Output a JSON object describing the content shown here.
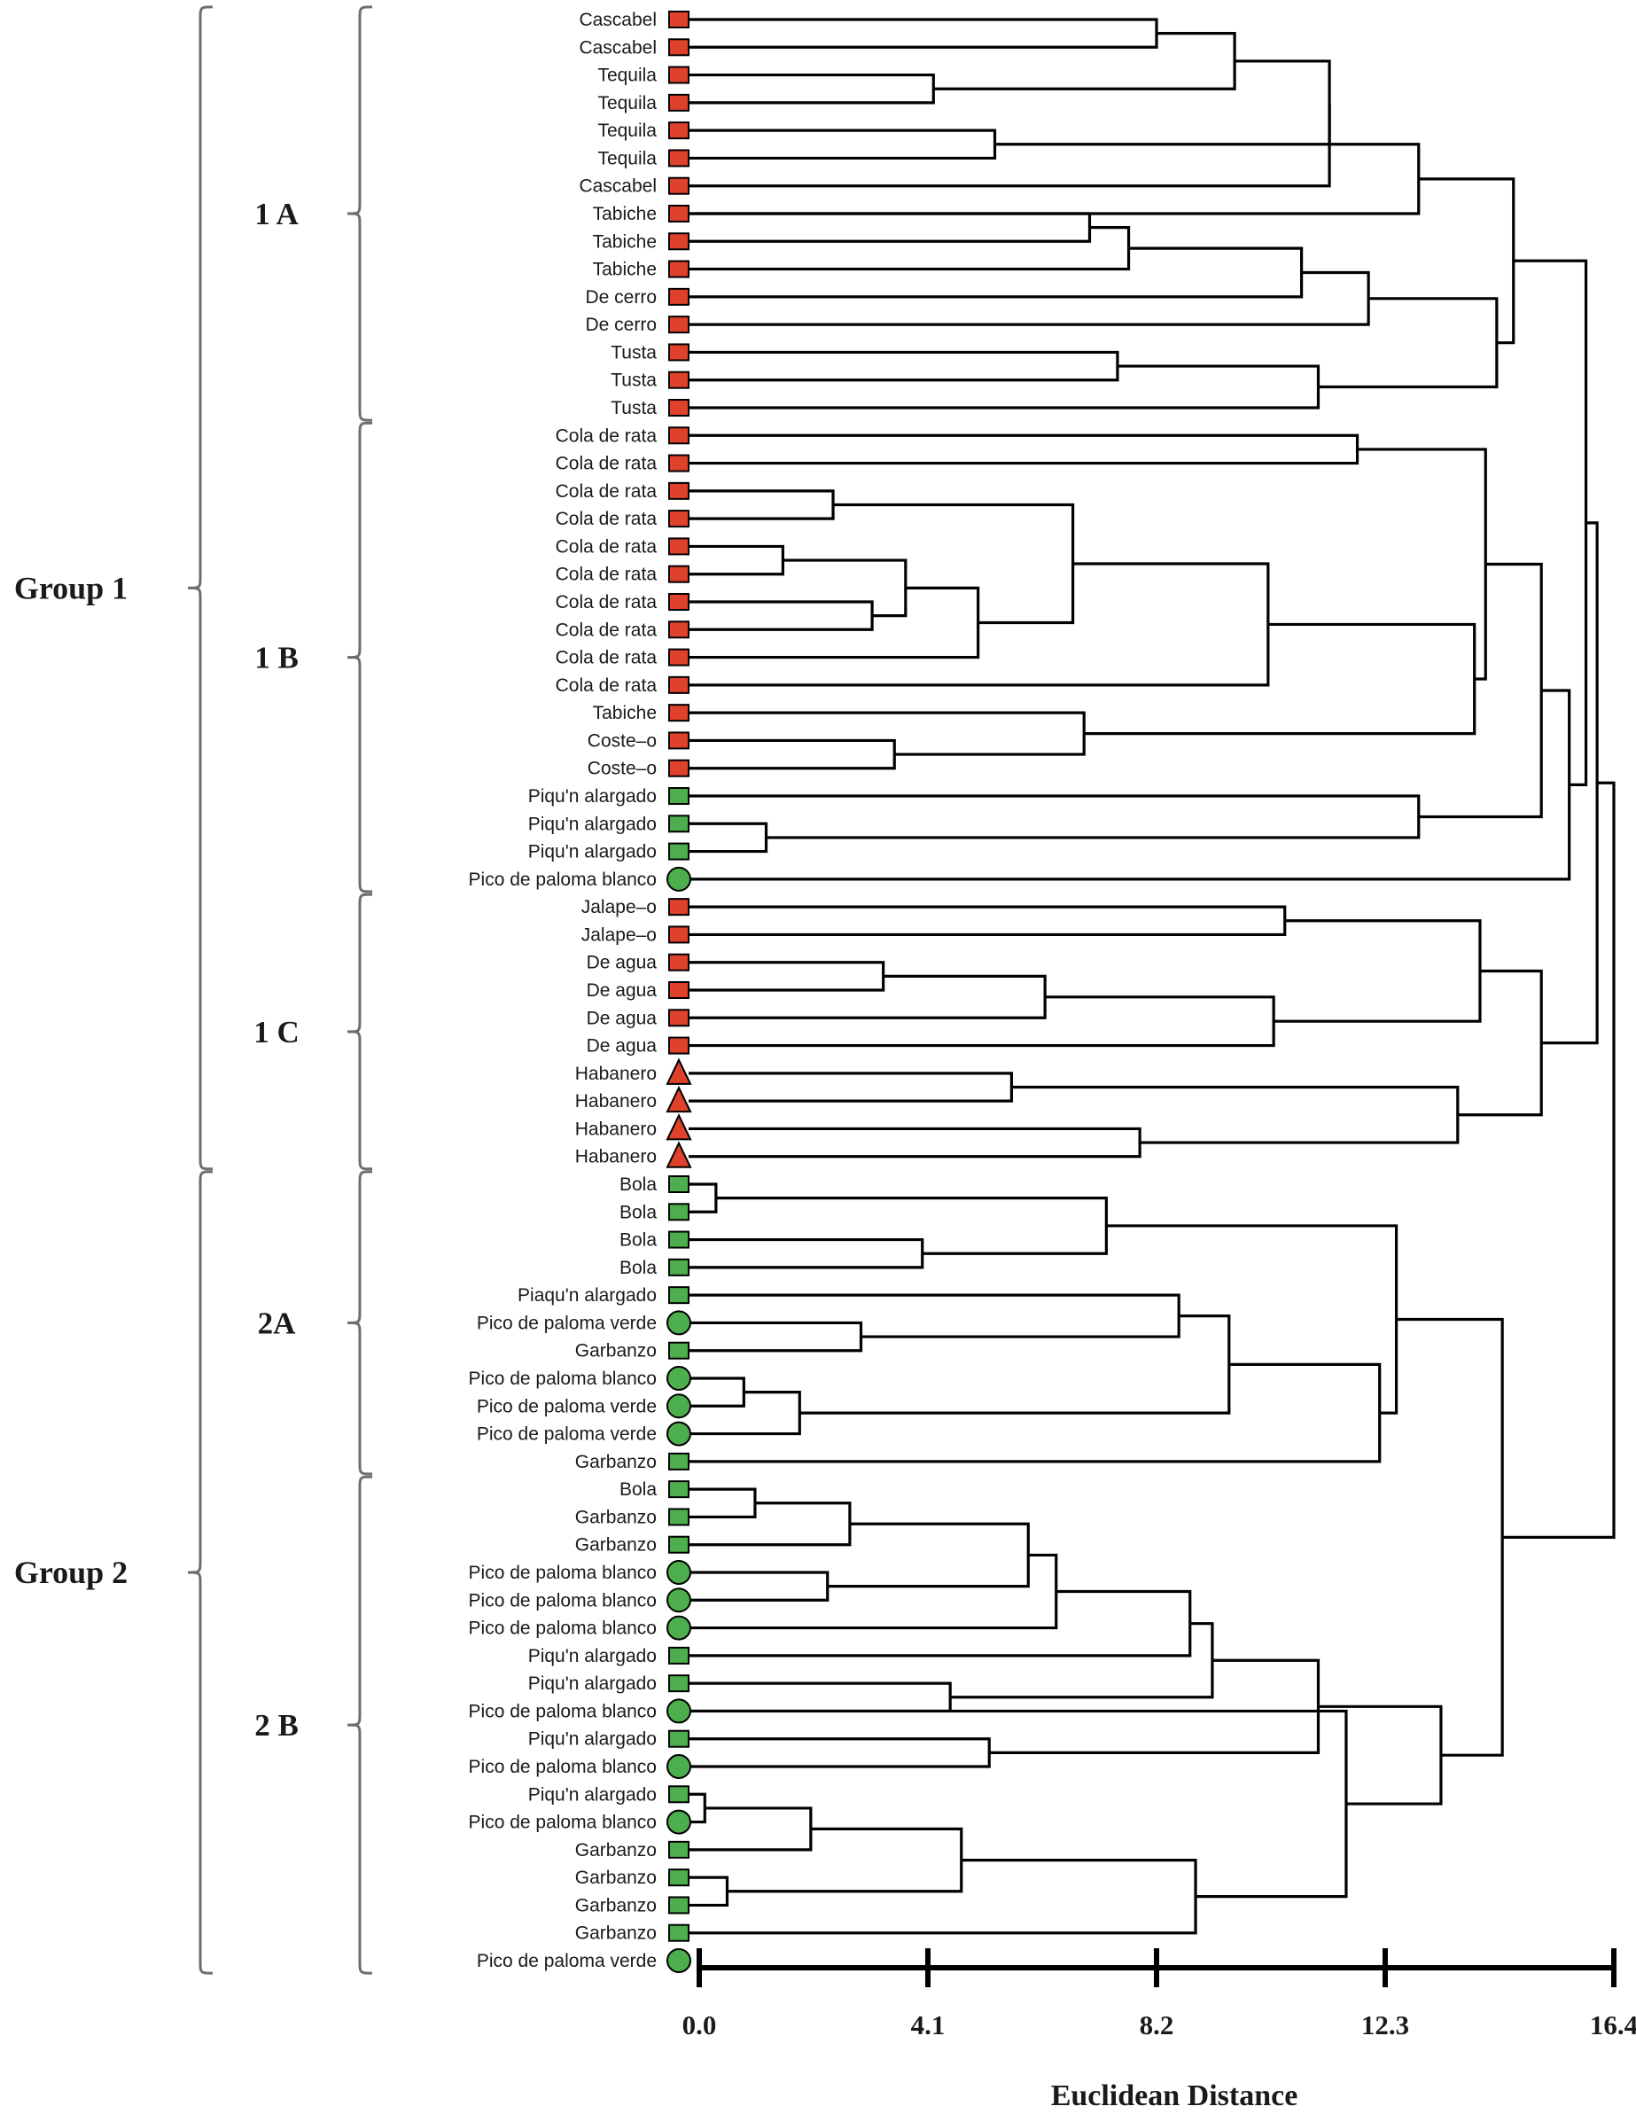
{
  "chart_data": {
    "type": "dendrogram",
    "xlabel": "Euclidean Distance",
    "xlim": [
      0,
      16.4
    ],
    "ticks": [
      {
        "value": 0.0,
        "label": "0.0"
      },
      {
        "value": 4.1,
        "label": "4.1"
      },
      {
        "value": 8.2,
        "label": "8.2"
      },
      {
        "value": 12.3,
        "label": "12.3"
      },
      {
        "value": 16.4,
        "label": "16.4"
      }
    ],
    "colors": {
      "red": "#e0412b",
      "green": "#4cae4c"
    },
    "leaves": [
      {
        "label": "Cascabel",
        "shape": "square",
        "color": "red"
      },
      {
        "label": "Cascabel",
        "shape": "square",
        "color": "red"
      },
      {
        "label": "Tequila",
        "shape": "square",
        "color": "red"
      },
      {
        "label": "Tequila",
        "shape": "square",
        "color": "red"
      },
      {
        "label": "Tequila",
        "shape": "square",
        "color": "red"
      },
      {
        "label": "Tequila",
        "shape": "square",
        "color": "red"
      },
      {
        "label": "Cascabel",
        "shape": "square",
        "color": "red"
      },
      {
        "label": "Tabiche",
        "shape": "square",
        "color": "red"
      },
      {
        "label": "Tabiche",
        "shape": "square",
        "color": "red"
      },
      {
        "label": "Tabiche",
        "shape": "square",
        "color": "red"
      },
      {
        "label": "De cerro",
        "shape": "square",
        "color": "red"
      },
      {
        "label": "De cerro",
        "shape": "square",
        "color": "red"
      },
      {
        "label": "Tusta",
        "shape": "square",
        "color": "red"
      },
      {
        "label": "Tusta",
        "shape": "square",
        "color": "red"
      },
      {
        "label": "Tusta",
        "shape": "square",
        "color": "red"
      },
      {
        "label": "Cola de rata",
        "shape": "square",
        "color": "red"
      },
      {
        "label": "Cola de rata",
        "shape": "square",
        "color": "red"
      },
      {
        "label": "Cola de rata",
        "shape": "square",
        "color": "red"
      },
      {
        "label": "Cola de rata",
        "shape": "square",
        "color": "red"
      },
      {
        "label": "Cola de rata",
        "shape": "square",
        "color": "red"
      },
      {
        "label": "Cola de rata",
        "shape": "square",
        "color": "red"
      },
      {
        "label": "Cola de rata",
        "shape": "square",
        "color": "red"
      },
      {
        "label": "Cola de rata",
        "shape": "square",
        "color": "red"
      },
      {
        "label": "Cola de rata",
        "shape": "square",
        "color": "red"
      },
      {
        "label": "Cola de rata",
        "shape": "square",
        "color": "red"
      },
      {
        "label": "Tabiche",
        "shape": "square",
        "color": "red"
      },
      {
        "label": "Coste–o",
        "shape": "square",
        "color": "red"
      },
      {
        "label": "Coste–o",
        "shape": "square",
        "color": "red"
      },
      {
        "label": "Piqu'n alargado",
        "shape": "square",
        "color": "green"
      },
      {
        "label": "Piqu'n alargado",
        "shape": "square",
        "color": "green"
      },
      {
        "label": "Piqu'n alargado",
        "shape": "square",
        "color": "green"
      },
      {
        "label": "Pico de paloma blanco",
        "shape": "circle",
        "color": "green"
      },
      {
        "label": "Jalape–o",
        "shape": "square",
        "color": "red"
      },
      {
        "label": "Jalape–o",
        "shape": "square",
        "color": "red"
      },
      {
        "label": "De agua",
        "shape": "square",
        "color": "red"
      },
      {
        "label": "De agua",
        "shape": "square",
        "color": "red"
      },
      {
        "label": "De agua",
        "shape": "square",
        "color": "red"
      },
      {
        "label": "De agua",
        "shape": "square",
        "color": "red"
      },
      {
        "label": "Habanero",
        "shape": "triangle",
        "color": "red"
      },
      {
        "label": "Habanero",
        "shape": "triangle",
        "color": "red"
      },
      {
        "label": "Habanero",
        "shape": "triangle",
        "color": "red"
      },
      {
        "label": "Habanero",
        "shape": "triangle",
        "color": "red"
      },
      {
        "label": "Bola",
        "shape": "square",
        "color": "green"
      },
      {
        "label": "Bola",
        "shape": "square",
        "color": "green"
      },
      {
        "label": "Bola",
        "shape": "square",
        "color": "green"
      },
      {
        "label": "Bola",
        "shape": "square",
        "color": "green"
      },
      {
        "label": "Piaqu'n alargado",
        "shape": "square",
        "color": "green"
      },
      {
        "label": "Pico de paloma verde",
        "shape": "circle",
        "color": "green"
      },
      {
        "label": "Garbanzo",
        "shape": "square",
        "color": "green"
      },
      {
        "label": "Pico de paloma blanco",
        "shape": "circle",
        "color": "green"
      },
      {
        "label": "Pico de paloma verde",
        "shape": "circle",
        "color": "green"
      },
      {
        "label": "Pico de paloma verde",
        "shape": "circle",
        "color": "green"
      },
      {
        "label": "Garbanzo",
        "shape": "square",
        "color": "green"
      },
      {
        "label": "Bola",
        "shape": "square",
        "color": "green"
      },
      {
        "label": "Garbanzo",
        "shape": "square",
        "color": "green"
      },
      {
        "label": "Garbanzo",
        "shape": "square",
        "color": "green"
      },
      {
        "label": "Pico de paloma blanco",
        "shape": "circle",
        "color": "green"
      },
      {
        "label": "Pico de paloma blanco",
        "shape": "circle",
        "color": "green"
      },
      {
        "label": "Pico de paloma blanco",
        "shape": "circle",
        "color": "green"
      },
      {
        "label": "Piqu'n alargado",
        "shape": "square",
        "color": "green"
      },
      {
        "label": "Piqu'n alargado",
        "shape": "square",
        "color": "green"
      },
      {
        "label": "Pico de paloma blanco",
        "shape": "circle",
        "color": "green"
      },
      {
        "label": "Piqu'n alargado",
        "shape": "square",
        "color": "green"
      },
      {
        "label": "Pico de paloma blanco",
        "shape": "circle",
        "color": "green"
      },
      {
        "label": "Piqu'n alargado",
        "shape": "square",
        "color": "green"
      },
      {
        "label": "Pico de paloma blanco",
        "shape": "circle",
        "color": "green"
      },
      {
        "label": "Garbanzo",
        "shape": "square",
        "color": "green"
      },
      {
        "label": "Garbanzo",
        "shape": "square",
        "color": "green"
      },
      {
        "label": "Garbanzo",
        "shape": "square",
        "color": "green"
      },
      {
        "label": "Garbanzo",
        "shape": "square",
        "color": "green"
      },
      {
        "label": "Pico de paloma verde",
        "shape": "circle",
        "color": "green"
      }
    ],
    "merges": [
      {
        "a": "L2",
        "b": "L3",
        "d": 4.2
      },
      {
        "a": "L4",
        "b": "L5",
        "d": 5.3
      },
      {
        "a": "L0",
        "b": "L1",
        "d": 8.2
      },
      {
        "a": "N2",
        "b": "N0",
        "d": 9.6
      },
      {
        "a": "N3",
        "b": "N1",
        "d": 11.3
      },
      {
        "a": "N4",
        "b": "L6",
        "d": 11.3
      },
      {
        "a": "N5",
        "b": "L7",
        "d": 12.9
      },
      {
        "a": "L7",
        "b": "L8",
        "d": 7.0
      },
      {
        "a": "N7",
        "b": "L9",
        "d": 7.7
      },
      {
        "a": "N8",
        "b": "L10",
        "d": 10.8
      },
      {
        "a": "N9",
        "b": "L11",
        "d": 12.0
      },
      {
        "a": "L12",
        "b": "L13",
        "d": 7.5
      },
      {
        "a": "N11",
        "b": "L14",
        "d": 11.1
      },
      {
        "a": "N10",
        "b": "N12",
        "d": 14.3
      },
      {
        "a": "N6",
        "b": "N13",
        "d": 14.6
      },
      {
        "a": "L15",
        "b": "L16",
        "d": 11.8
      },
      {
        "a": "L17",
        "b": "L18",
        "d": 2.4
      },
      {
        "a": "L19",
        "b": "L20",
        "d": 1.5
      },
      {
        "a": "L21",
        "b": "L22",
        "d": 3.1
      },
      {
        "a": "N17",
        "b": "N18",
        "d": 3.7
      },
      {
        "a": "N19",
        "b": "L23",
        "d": 5.0
      },
      {
        "a": "N16",
        "b": "N20",
        "d": 6.7
      },
      {
        "a": "N21",
        "b": "L24",
        "d": 10.2
      },
      {
        "a": "L26",
        "b": "L27",
        "d": 3.5
      },
      {
        "a": "L25",
        "b": "N23",
        "d": 6.9
      },
      {
        "a": "N22",
        "b": "N24",
        "d": 13.9
      },
      {
        "a": "N15",
        "b": "N25",
        "d": 14.1
      },
      {
        "a": "L29",
        "b": "L30",
        "d": 1.2
      },
      {
        "a": "L28",
        "b": "N27",
        "d": 12.9
      },
      {
        "a": "N26",
        "b": "N28",
        "d": 15.1
      },
      {
        "a": "N29",
        "b": "L31",
        "d": 15.6
      },
      {
        "a": "N14",
        "b": "N30",
        "d": 15.9
      },
      {
        "a": "L32",
        "b": "L33",
        "d": 10.5
      },
      {
        "a": "L34",
        "b": "L35",
        "d": 3.3
      },
      {
        "a": "N33",
        "b": "L36",
        "d": 6.2
      },
      {
        "a": "N34",
        "b": "L37",
        "d": 10.3
      },
      {
        "a": "N32",
        "b": "N35",
        "d": 14.0
      },
      {
        "a": "L38",
        "b": "L39",
        "d": 5.6
      },
      {
        "a": "L40",
        "b": "L41",
        "d": 7.9
      },
      {
        "a": "N37",
        "b": "N38",
        "d": 13.6
      },
      {
        "a": "N36",
        "b": "N39",
        "d": 15.1
      },
      {
        "a": "N31",
        "b": "N40",
        "d": 16.1
      },
      {
        "a": "L42",
        "b": "L43",
        "d": 0.3
      },
      {
        "a": "L44",
        "b": "L45",
        "d": 4.0
      },
      {
        "a": "N42",
        "b": "N43",
        "d": 7.3
      },
      {
        "a": "L47",
        "b": "L48",
        "d": 2.9
      },
      {
        "a": "L46",
        "b": "N45",
        "d": 8.6
      },
      {
        "a": "L49",
        "b": "L50",
        "d": 0.8
      },
      {
        "a": "N47",
        "b": "L51",
        "d": 1.8
      },
      {
        "a": "N46",
        "b": "N48",
        "d": 9.5
      },
      {
        "a": "N49",
        "b": "L52",
        "d": 12.2
      },
      {
        "a": "N44",
        "b": "N50",
        "d": 12.5
      },
      {
        "a": "L53",
        "b": "L54",
        "d": 1.0
      },
      {
        "a": "N52",
        "b": "L55",
        "d": 2.7
      },
      {
        "a": "L56",
        "b": "L57",
        "d": 2.3
      },
      {
        "a": "N53",
        "b": "N54",
        "d": 5.9
      },
      {
        "a": "N55",
        "b": "L58",
        "d": 6.4
      },
      {
        "a": "N56",
        "b": "L59",
        "d": 8.8
      },
      {
        "a": "L60",
        "b": "L61",
        "d": 4.5
      },
      {
        "a": "N57",
        "b": "N58",
        "d": 9.2
      },
      {
        "a": "L62",
        "b": "L63",
        "d": 5.2
      },
      {
        "a": "N59",
        "b": "N60",
        "d": 11.1
      },
      {
        "a": "L64",
        "b": "L65",
        "d": 0.1
      },
      {
        "a": "N62",
        "b": "L66",
        "d": 2.0
      },
      {
        "a": "L67",
        "b": "L68",
        "d": 0.5
      },
      {
        "a": "N63",
        "b": "N64",
        "d": 4.7
      },
      {
        "a": "N65",
        "b": "L69",
        "d": 8.9
      },
      {
        "a": "L61",
        "b": "N66",
        "d": 11.6
      },
      {
        "a": "N61",
        "b": "N67",
        "d": 13.3
      },
      {
        "a": "N51",
        "b": "N68",
        "d": 14.4
      },
      {
        "a": "N41",
        "b": "N69",
        "d": 16.4
      }
    ],
    "groups": [
      {
        "label": "Group 1",
        "from": 0,
        "to": 41
      },
      {
        "label": "Group 2",
        "from": 42,
        "to": 70
      }
    ],
    "subgroups": [
      {
        "label": "1 A",
        "from": 0,
        "to": 14
      },
      {
        "label": "1 B",
        "from": 15,
        "to": 31
      },
      {
        "label": "1 C",
        "from": 32,
        "to": 41
      },
      {
        "label": "2A",
        "from": 42,
        "to": 52
      },
      {
        "label": "2 B",
        "from": 53,
        "to": 70
      }
    ]
  }
}
